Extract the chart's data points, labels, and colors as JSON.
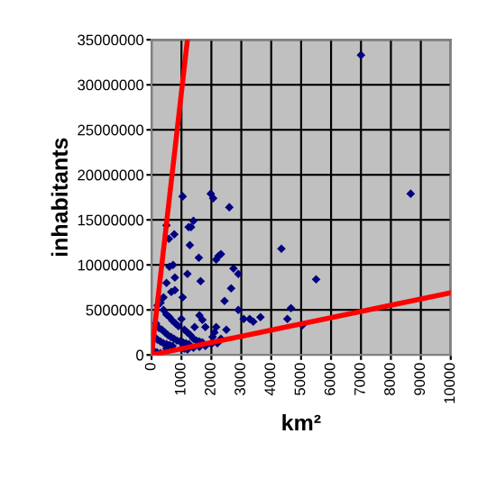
{
  "chart_data": {
    "type": "scatter",
    "xlabel": "km²",
    "ylabel": "inhabitants",
    "xlim": [
      0,
      10000
    ],
    "ylim": [
      0,
      35000000
    ],
    "xticks": [
      0,
      1000,
      2000,
      3000,
      4000,
      5000,
      6000,
      7000,
      8000,
      9000,
      10000
    ],
    "yticks": [
      0,
      5000000,
      10000000,
      15000000,
      20000000,
      25000000,
      30000000,
      35000000
    ],
    "grid": true,
    "series": [
      {
        "marker": "diamond",
        "color": "#000080",
        "x": [
          7000,
          8660,
          1040,
          1980,
          2060,
          2600,
          500,
          1400,
          1320,
          1240,
          580,
          760,
          1280,
          4340,
          1580,
          2240,
          2160,
          2320,
          720,
          600,
          1200,
          2740,
          2900,
          780,
          5500,
          1640,
          500,
          2660,
          660,
          780,
          2440,
          1040,
          280,
          400,
          2900,
          4660,
          4540,
          3640,
          3080,
          3280,
          3400,
          5040,
          1600,
          1700,
          1440,
          1800,
          2500,
          2160,
          2100,
          2040,
          2320,
          200,
          300,
          400,
          500,
          600,
          700,
          800,
          900,
          1000,
          1100,
          1200,
          1300,
          1400,
          1500,
          1600,
          1700,
          150,
          250,
          350,
          450,
          550,
          650,
          750,
          850,
          950,
          1050,
          1150,
          1250,
          100,
          200,
          300,
          400,
          500,
          600,
          700,
          1000,
          1100,
          1200,
          1400,
          1600,
          1800,
          2000,
          2200,
          500,
          60,
          180,
          300
        ],
        "values": [
          33300000,
          17900000,
          17600000,
          17900000,
          17400000,
          16400000,
          14400000,
          14900000,
          14200000,
          14200000,
          12900000,
          13400000,
          12200000,
          11800000,
          10800000,
          11000000,
          10600000,
          11200000,
          10000000,
          9800000,
          9000000,
          9600000,
          9000000,
          8600000,
          8400000,
          8200000,
          8000000,
          7400000,
          7000000,
          7200000,
          6000000,
          6400000,
          6200000,
          6400000,
          5000000,
          5200000,
          4000000,
          4200000,
          4000000,
          4000000,
          3700000,
          3300000,
          4400000,
          3900000,
          3100000,
          3100000,
          2800000,
          3100000,
          2500000,
          2000000,
          1800000,
          5500000,
          5800000,
          5000000,
          4500000,
          4200000,
          3800000,
          3500000,
          3200000,
          4000000,
          2800000,
          2500000,
          2200000,
          1800000,
          1600000,
          1500000,
          1400000,
          3500000,
          3000000,
          2800000,
          2500000,
          2200000,
          2000000,
          1800000,
          1600000,
          1500000,
          1400000,
          1300000,
          1200000,
          2000000,
          1700000,
          1500000,
          1300000,
          1200000,
          1100000,
          1000000,
          700000,
          700000,
          600000,
          800000,
          900000,
          1000000,
          1200000,
          1300000,
          700000,
          500000,
          300000,
          200000
        ]
      },
      {
        "type": "line",
        "marker": "none",
        "color": "#ff0000",
        "x": [
          0,
          1200
        ],
        "values": [
          0,
          35000000
        ]
      },
      {
        "type": "line",
        "marker": "none",
        "color": "#ff0000",
        "x": [
          0,
          10000
        ],
        "values": [
          0,
          6900000
        ]
      }
    ]
  }
}
